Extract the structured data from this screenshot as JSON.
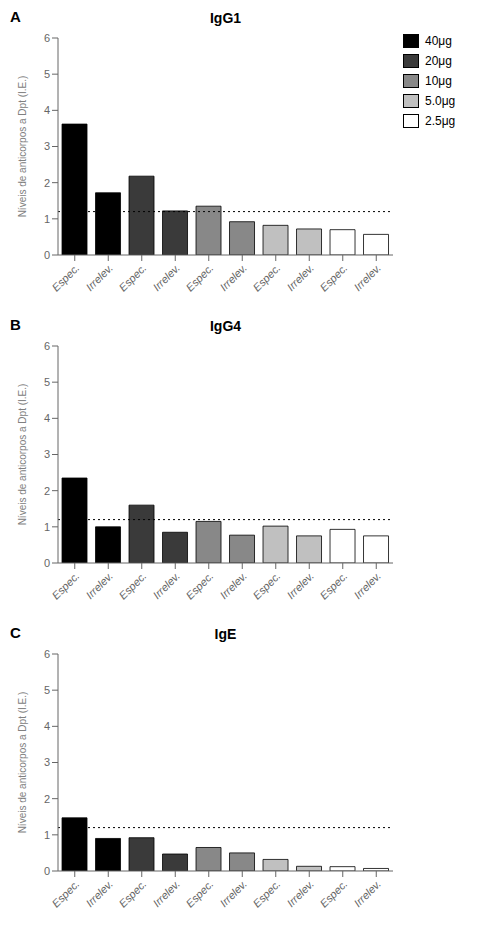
{
  "chart_data": [
    {
      "type": "bar",
      "panel_label": "A",
      "title": "IgG1",
      "ylabel": "Níveis de anticorpos a Dpt (I.E.)",
      "categories": [
        "Espec.",
        "Irrelev.",
        "Espec.",
        "Irrelev.",
        "Espec.",
        "Irrelev.",
        "Espec.",
        "Irrelev.",
        "Espec.",
        "Irrelev."
      ],
      "series": [
        {
          "name": "40μg",
          "color": "#000000",
          "values": [
            3.62,
            1.72,
            null,
            null,
            null,
            null,
            null,
            null,
            null,
            null
          ]
        },
        {
          "name": "20μg",
          "color": "#3a3a3a",
          "values": [
            null,
            null,
            2.18,
            1.22,
            null,
            null,
            null,
            null,
            null,
            null
          ]
        },
        {
          "name": "10μg",
          "color": "#888888",
          "values": [
            null,
            null,
            null,
            null,
            1.35,
            0.92,
            null,
            null,
            null,
            null
          ]
        },
        {
          "name": "5.0μg",
          "color": "#c0c0c0",
          "values": [
            null,
            null,
            null,
            null,
            null,
            null,
            0.82,
            0.72,
            null,
            null
          ]
        },
        {
          "name": "2.5μg",
          "color": "#ffffff",
          "values": [
            null,
            null,
            null,
            null,
            null,
            null,
            null,
            null,
            0.7,
            0.57
          ]
        }
      ],
      "reference_line": 1.2,
      "ylim": [
        0,
        6
      ],
      "yticks": [
        0,
        1,
        2,
        3,
        4,
        5,
        6
      ],
      "grid": false,
      "legend": "right"
    },
    {
      "type": "bar",
      "panel_label": "B",
      "title": "IgG4",
      "ylabel": "Níveis de anticorpos a Dpt (I.E.)",
      "categories": [
        "Espec.",
        "Irrelev.",
        "Espec.",
        "Irrelev.",
        "Espec.",
        "Irrelev.",
        "Espec.",
        "Irrelev.",
        "Espec.",
        "Irrelev."
      ],
      "series": [
        {
          "name": "40μg",
          "color": "#000000",
          "values": [
            2.35,
            1.0,
            null,
            null,
            null,
            null,
            null,
            null,
            null,
            null
          ]
        },
        {
          "name": "20μg",
          "color": "#3a3a3a",
          "values": [
            null,
            null,
            1.6,
            0.85,
            null,
            null,
            null,
            null,
            null,
            null
          ]
        },
        {
          "name": "10μg",
          "color": "#888888",
          "values": [
            null,
            null,
            null,
            null,
            1.15,
            0.77,
            null,
            null,
            null,
            null
          ]
        },
        {
          "name": "5.0μg",
          "color": "#c0c0c0",
          "values": [
            null,
            null,
            null,
            null,
            null,
            null,
            1.02,
            0.75,
            null,
            null
          ]
        },
        {
          "name": "2.5μg",
          "color": "#ffffff",
          "values": [
            null,
            null,
            null,
            null,
            null,
            null,
            null,
            null,
            0.93,
            0.75
          ]
        }
      ],
      "reference_line": 1.2,
      "ylim": [
        0,
        6
      ],
      "yticks": [
        0,
        1,
        2,
        3,
        4,
        5,
        6
      ],
      "grid": false,
      "legend": false
    },
    {
      "type": "bar",
      "panel_label": "C",
      "title": "IgE",
      "ylabel": "Níveis de anticorpos a Dpt (I.E.)",
      "categories": [
        "Espec.",
        "Irrelev.",
        "Espec.",
        "Irrelev.",
        "Espec.",
        "Irrelev.",
        "Espec.",
        "Irrelev.",
        "Espec.",
        "Irrelev."
      ],
      "series": [
        {
          "name": "40μg",
          "color": "#000000",
          "values": [
            1.47,
            0.9,
            null,
            null,
            null,
            null,
            null,
            null,
            null,
            null
          ]
        },
        {
          "name": "20μg",
          "color": "#3a3a3a",
          "values": [
            null,
            null,
            0.92,
            0.47,
            null,
            null,
            null,
            null,
            null,
            null
          ]
        },
        {
          "name": "10μg",
          "color": "#888888",
          "values": [
            null,
            null,
            null,
            null,
            0.65,
            0.5,
            null,
            null,
            null,
            null
          ]
        },
        {
          "name": "5.0μg",
          "color": "#c0c0c0",
          "values": [
            null,
            null,
            null,
            null,
            null,
            null,
            0.32,
            0.13,
            null,
            null
          ]
        },
        {
          "name": "2.5μg",
          "color": "#ffffff",
          "values": [
            null,
            null,
            null,
            null,
            null,
            null,
            null,
            null,
            0.12,
            0.07
          ]
        }
      ],
      "reference_line": 1.2,
      "ylim": [
        0,
        6
      ],
      "yticks": [
        0,
        1,
        2,
        3,
        4,
        5,
        6
      ],
      "grid": false,
      "legend": false
    }
  ]
}
